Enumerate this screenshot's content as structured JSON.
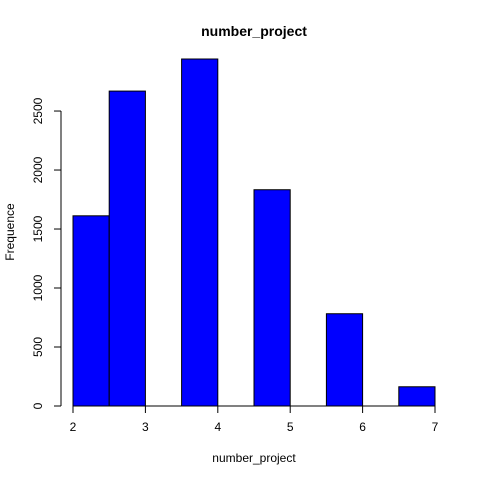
{
  "chart_data": {
    "type": "bar",
    "title": "number_project",
    "xlabel": "number_project",
    "ylabel": "Frequence",
    "bins": [
      {
        "from": 2.0,
        "to": 2.5,
        "value": 1612
      },
      {
        "from": 2.5,
        "to": 3.0,
        "value": 2669
      },
      {
        "from": 3.0,
        "to": 3.5,
        "value": 0
      },
      {
        "from": 3.5,
        "to": 4.0,
        "value": 2941
      },
      {
        "from": 4.0,
        "to": 4.5,
        "value": 0
      },
      {
        "from": 4.5,
        "to": 5.0,
        "value": 1833
      },
      {
        "from": 5.0,
        "to": 5.5,
        "value": 0
      },
      {
        "from": 5.5,
        "to": 6.0,
        "value": 782
      },
      {
        "from": 6.0,
        "to": 6.5,
        "value": 0
      },
      {
        "from": 6.5,
        "to": 7.0,
        "value": 163
      }
    ],
    "xlim": [
      2,
      7
    ],
    "ylim": [
      0,
      2941
    ],
    "x_ticks": [
      "2",
      "3",
      "4",
      "5",
      "6",
      "7"
    ],
    "y_ticks": [
      "0",
      "500",
      "1000",
      "1500",
      "2000",
      "2500"
    ],
    "grid": false,
    "legend": "none",
    "colors": {
      "bar_fill": "#0000ff",
      "bar_stroke": "#000000",
      "axis": "#000000",
      "background": "#ffffff"
    }
  }
}
